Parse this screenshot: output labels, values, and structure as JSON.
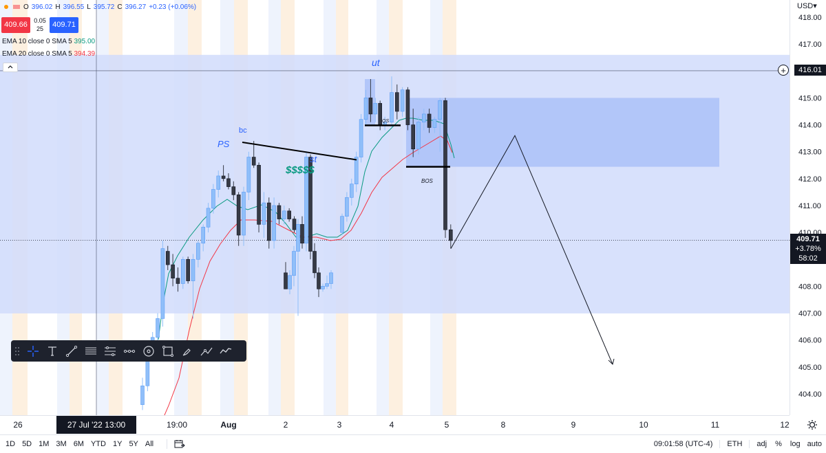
{
  "legend": {
    "o_label": "O",
    "o_value": "396.02",
    "h_label": "H",
    "h_value": "396.55",
    "l_label": "L",
    "l_value": "395.72",
    "c_label": "C",
    "c_value": "396.27",
    "change": "+0.23 (+0.06%)"
  },
  "trade": {
    "sell_price": "409.66",
    "buy_price": "409.71",
    "spread": "0.05",
    "qty": "25"
  },
  "indicators": [
    {
      "label": "EMA 10 close 0 SMA 5",
      "value": "395.00",
      "color": "#089981"
    },
    {
      "label": "EMA 20 close 0 SMA 5",
      "value": "394.39",
      "color": "#f23645"
    }
  ],
  "currency": "USD",
  "price_axis": {
    "ticks": [
      "418.00",
      "417.00",
      "416.00",
      "415.00",
      "414.00",
      "413.00",
      "412.00",
      "411.00",
      "410.00",
      "409.00",
      "408.00",
      "407.00",
      "406.00",
      "405.00",
      "404.00"
    ],
    "cross_price": "416.01",
    "last_price": "409.71",
    "last_change": "+3.78%",
    "countdown": "58:02"
  },
  "time_axis": {
    "labels": [
      "26",
      "19:00",
      "Aug",
      "2",
      "3",
      "4",
      "5",
      "8",
      "9",
      "10",
      "11",
      "12"
    ],
    "cross_time": "27 Jul '22  13:00"
  },
  "annotations": {
    "ut": "ut",
    "ps": "PS",
    "bc": "bc",
    "st": "st",
    "dollars": "$$$$$",
    "bos": "BOS",
    "qs": "QS"
  },
  "bottom_bar": {
    "ranges": [
      "1D",
      "5D",
      "1M",
      "3M",
      "6M",
      "YTD",
      "1Y",
      "5Y",
      "All"
    ],
    "clock": "09:01:58 (UTC-4)",
    "session": "ETH",
    "adj": "adj",
    "percent": "%",
    "log": "log",
    "auto": "auto"
  },
  "toolbar_icons": [
    "drag-handle-icon",
    "crosshair-icon",
    "text-icon",
    "trendline-icon",
    "horizontal-lines-icon",
    "fib-icon",
    "pitchfork-icon",
    "circle-target-icon",
    "rectangle-icon",
    "brush-icon",
    "path-icon",
    "forecast-icon"
  ],
  "colors": {
    "zone": "#d1dcfb",
    "zone_strong": "#a9bff8",
    "up": "#90bff9",
    "down": "#363a45",
    "ema10": "#089981",
    "ema20": "#f23645",
    "accent": "#2962ff"
  },
  "chart_data": {
    "type": "candlestick",
    "ylim": [
      403.4,
      418.3
    ],
    "x_ticks": [
      "26",
      "19:00",
      "Aug",
      "2",
      "3",
      "4",
      "5",
      "8",
      "9",
      "10",
      "11",
      "12"
    ],
    "candles": [
      {
        "o": 403.6,
        "h": 404.6,
        "l": 403.4,
        "c": 404.3
      },
      {
        "o": 404.3,
        "h": 405.6,
        "l": 404.1,
        "c": 405.4
      },
      {
        "o": 405.4,
        "h": 406.3,
        "l": 405.2,
        "c": 406.1
      },
      {
        "o": 406.1,
        "h": 407.0,
        "l": 405.9,
        "c": 406.8
      },
      {
        "o": 406.8,
        "h": 409.7,
        "l": 406.5,
        "c": 409.4
      },
      {
        "o": 409.3,
        "h": 409.5,
        "l": 408.6,
        "c": 408.8
      },
      {
        "o": 408.8,
        "h": 409.2,
        "l": 408.0,
        "c": 408.3
      },
      {
        "o": 408.3,
        "h": 408.7,
        "l": 407.8,
        "c": 408.1
      },
      {
        "o": 408.1,
        "h": 409.1,
        "l": 407.9,
        "c": 409.0
      },
      {
        "o": 409.0,
        "h": 409.1,
        "l": 408.1,
        "c": 408.2
      },
      {
        "o": 408.2,
        "h": 409.2,
        "l": 406.8,
        "c": 409.0
      },
      {
        "o": 409.0,
        "h": 409.7,
        "l": 408.7,
        "c": 409.6
      },
      {
        "o": 409.6,
        "h": 410.3,
        "l": 409.3,
        "c": 410.2
      },
      {
        "o": 410.2,
        "h": 411.1,
        "l": 410.0,
        "c": 410.9
      },
      {
        "o": 410.9,
        "h": 411.8,
        "l": 410.7,
        "c": 411.6
      },
      {
        "o": 411.6,
        "h": 412.3,
        "l": 411.3,
        "c": 412.1
      },
      {
        "o": 412.1,
        "h": 412.5,
        "l": 411.9,
        "c": 412.0
      },
      {
        "o": 412.0,
        "h": 412.2,
        "l": 411.6,
        "c": 411.7
      },
      {
        "o": 411.7,
        "h": 411.9,
        "l": 411.2,
        "c": 411.4
      },
      {
        "o": 411.4,
        "h": 411.5,
        "l": 409.5,
        "c": 409.9
      },
      {
        "o": 409.9,
        "h": 411.7,
        "l": 409.5,
        "c": 411.5
      },
      {
        "o": 411.5,
        "h": 413.0,
        "l": 411.2,
        "c": 412.8
      },
      {
        "o": 412.8,
        "h": 413.4,
        "l": 412.4,
        "c": 412.5
      },
      {
        "o": 412.5,
        "h": 412.6,
        "l": 410.0,
        "c": 410.3
      },
      {
        "o": 410.3,
        "h": 411.5,
        "l": 409.8,
        "c": 411.1
      },
      {
        "o": 411.1,
        "h": 411.3,
        "l": 409.4,
        "c": 409.7
      },
      {
        "o": 409.7,
        "h": 411.3,
        "l": 409.4,
        "c": 411.0
      },
      {
        "o": 411.0,
        "h": 411.1,
        "l": 410.3,
        "c": 410.5
      },
      {
        "o": 410.5,
        "h": 411.0,
        "l": 410.3,
        "c": 410.8
      },
      {
        "o": 410.8,
        "h": 410.9,
        "l": 410.4,
        "c": 410.5
      },
      {
        "o": 410.5,
        "h": 410.6,
        "l": 410.0,
        "c": 410.1
      },
      {
        "o": 408.5,
        "h": 408.9,
        "l": 407.9,
        "c": 407.9
      },
      {
        "o": 407.9,
        "h": 408.6,
        "l": 407.7,
        "c": 408.4
      },
      {
        "o": 408.4,
        "h": 409.5,
        "l": 408.0,
        "c": 409.3
      },
      {
        "o": 409.3,
        "h": 410.5,
        "l": 406.9,
        "c": 410.3
      },
      {
        "o": 410.3,
        "h": 410.6,
        "l": 409.4,
        "c": 409.6
      },
      {
        "o": 409.6,
        "h": 413.0,
        "l": 409.3,
        "c": 412.8
      },
      {
        "o": 412.8,
        "h": 412.9,
        "l": 409.0,
        "c": 409.3
      },
      {
        "o": 409.3,
        "h": 409.6,
        "l": 408.3,
        "c": 408.5
      },
      {
        "o": 408.5,
        "h": 408.7,
        "l": 407.6,
        "c": 407.9
      },
      {
        "o": 407.9,
        "h": 408.1,
        "l": 407.8,
        "c": 408.0
      },
      {
        "o": 408.0,
        "h": 408.4,
        "l": 407.9,
        "c": 408.1
      },
      {
        "o": 408.1,
        "h": 408.6,
        "l": 407.9,
        "c": 408.5
      },
      {
        "o": 410.0,
        "h": 410.7,
        "l": 409.9,
        "c": 410.6
      },
      {
        "o": 410.6,
        "h": 411.5,
        "l": 410.4,
        "c": 411.3
      },
      {
        "o": 411.3,
        "h": 412.0,
        "l": 411.0,
        "c": 411.8
      },
      {
        "o": 411.8,
        "h": 413.0,
        "l": 411.5,
        "c": 412.8
      },
      {
        "o": 412.8,
        "h": 414.4,
        "l": 412.6,
        "c": 414.2
      },
      {
        "o": 414.2,
        "h": 415.3,
        "l": 414.0,
        "c": 415.0
      },
      {
        "o": 415.0,
        "h": 415.7,
        "l": 414.1,
        "c": 414.4
      },
      {
        "o": 414.4,
        "h": 415.0,
        "l": 414.1,
        "c": 414.8
      },
      {
        "o": 414.8,
        "h": 414.9,
        "l": 413.8,
        "c": 414.0
      },
      {
        "o": 414.0,
        "h": 414.3,
        "l": 413.8,
        "c": 414.1
      },
      {
        "o": 414.1,
        "h": 415.8,
        "l": 413.9,
        "c": 415.2
      },
      {
        "o": 415.2,
        "h": 415.5,
        "l": 414.2,
        "c": 414.5
      },
      {
        "o": 414.5,
        "h": 415.4,
        "l": 414.3,
        "c": 415.3
      },
      {
        "o": 415.3,
        "h": 415.4,
        "l": 413.8,
        "c": 414.0
      },
      {
        "o": 414.0,
        "h": 414.6,
        "l": 412.8,
        "c": 413.1
      },
      {
        "o": 413.1,
        "h": 414.3,
        "l": 412.9,
        "c": 414.1
      },
      {
        "o": 414.1,
        "h": 414.6,
        "l": 413.8,
        "c": 414.4
      },
      {
        "o": 414.4,
        "h": 414.6,
        "l": 413.7,
        "c": 413.9
      },
      {
        "o": 413.9,
        "h": 414.3,
        "l": 413.7,
        "c": 414.2
      },
      {
        "o": 414.2,
        "h": 415.0,
        "l": 413.0,
        "c": 414.9
      },
      {
        "o": 414.9,
        "h": 415.0,
        "l": 409.8,
        "c": 410.1
      },
      {
        "o": 410.1,
        "h": 410.3,
        "l": 409.4,
        "c": 409.7
      }
    ],
    "ema10": [
      [
        230,
        494
      ],
      [
        237,
        440
      ],
      [
        245,
        398
      ],
      [
        258,
        372
      ],
      [
        275,
        345
      ],
      [
        295,
        320
      ],
      [
        315,
        300
      ],
      [
        330,
        290
      ],
      [
        345,
        300
      ],
      [
        360,
        305
      ],
      [
        380,
        298
      ],
      [
        400,
        308
      ],
      [
        415,
        325
      ],
      [
        430,
        345
      ],
      [
        445,
        345
      ],
      [
        460,
        340
      ],
      [
        475,
        345
      ],
      [
        490,
        345
      ],
      [
        505,
        335
      ],
      [
        520,
        300
      ],
      [
        530,
        250
      ],
      [
        540,
        220
      ],
      [
        555,
        200
      ],
      [
        565,
        190
      ],
      [
        580,
        175
      ],
      [
        590,
        172
      ],
      [
        600,
        172
      ],
      [
        615,
        175
      ],
      [
        630,
        175
      ],
      [
        645,
        180
      ],
      [
        655,
        210
      ],
      [
        660,
        230
      ]
    ],
    "ema20": [
      [
        232,
        620
      ],
      [
        245,
        590
      ],
      [
        260,
        550
      ],
      [
        275,
        480
      ],
      [
        290,
        420
      ],
      [
        305,
        380
      ],
      [
        320,
        355
      ],
      [
        335,
        335
      ],
      [
        350,
        320
      ],
      [
        370,
        320
      ],
      [
        395,
        322
      ],
      [
        420,
        335
      ],
      [
        440,
        345
      ],
      [
        460,
        345
      ],
      [
        480,
        350
      ],
      [
        495,
        348
      ],
      [
        510,
        335
      ],
      [
        525,
        310
      ],
      [
        540,
        280
      ],
      [
        555,
        258
      ],
      [
        570,
        245
      ],
      [
        585,
        232
      ],
      [
        600,
        222
      ],
      [
        620,
        210
      ],
      [
        640,
        198
      ],
      [
        650,
        205
      ],
      [
        657,
        222
      ]
    ],
    "zones": [
      {
        "y_top": 416.6,
        "y_bottom": 406.99,
        "label": "range"
      },
      {
        "y_top": 415.0,
        "y_bottom": 412.44,
        "label": "supply"
      }
    ],
    "projection_path": [
      [
        655,
        410.2
      ],
      [
        748,
        413.6
      ],
      [
        890,
        405.1
      ]
    ]
  }
}
